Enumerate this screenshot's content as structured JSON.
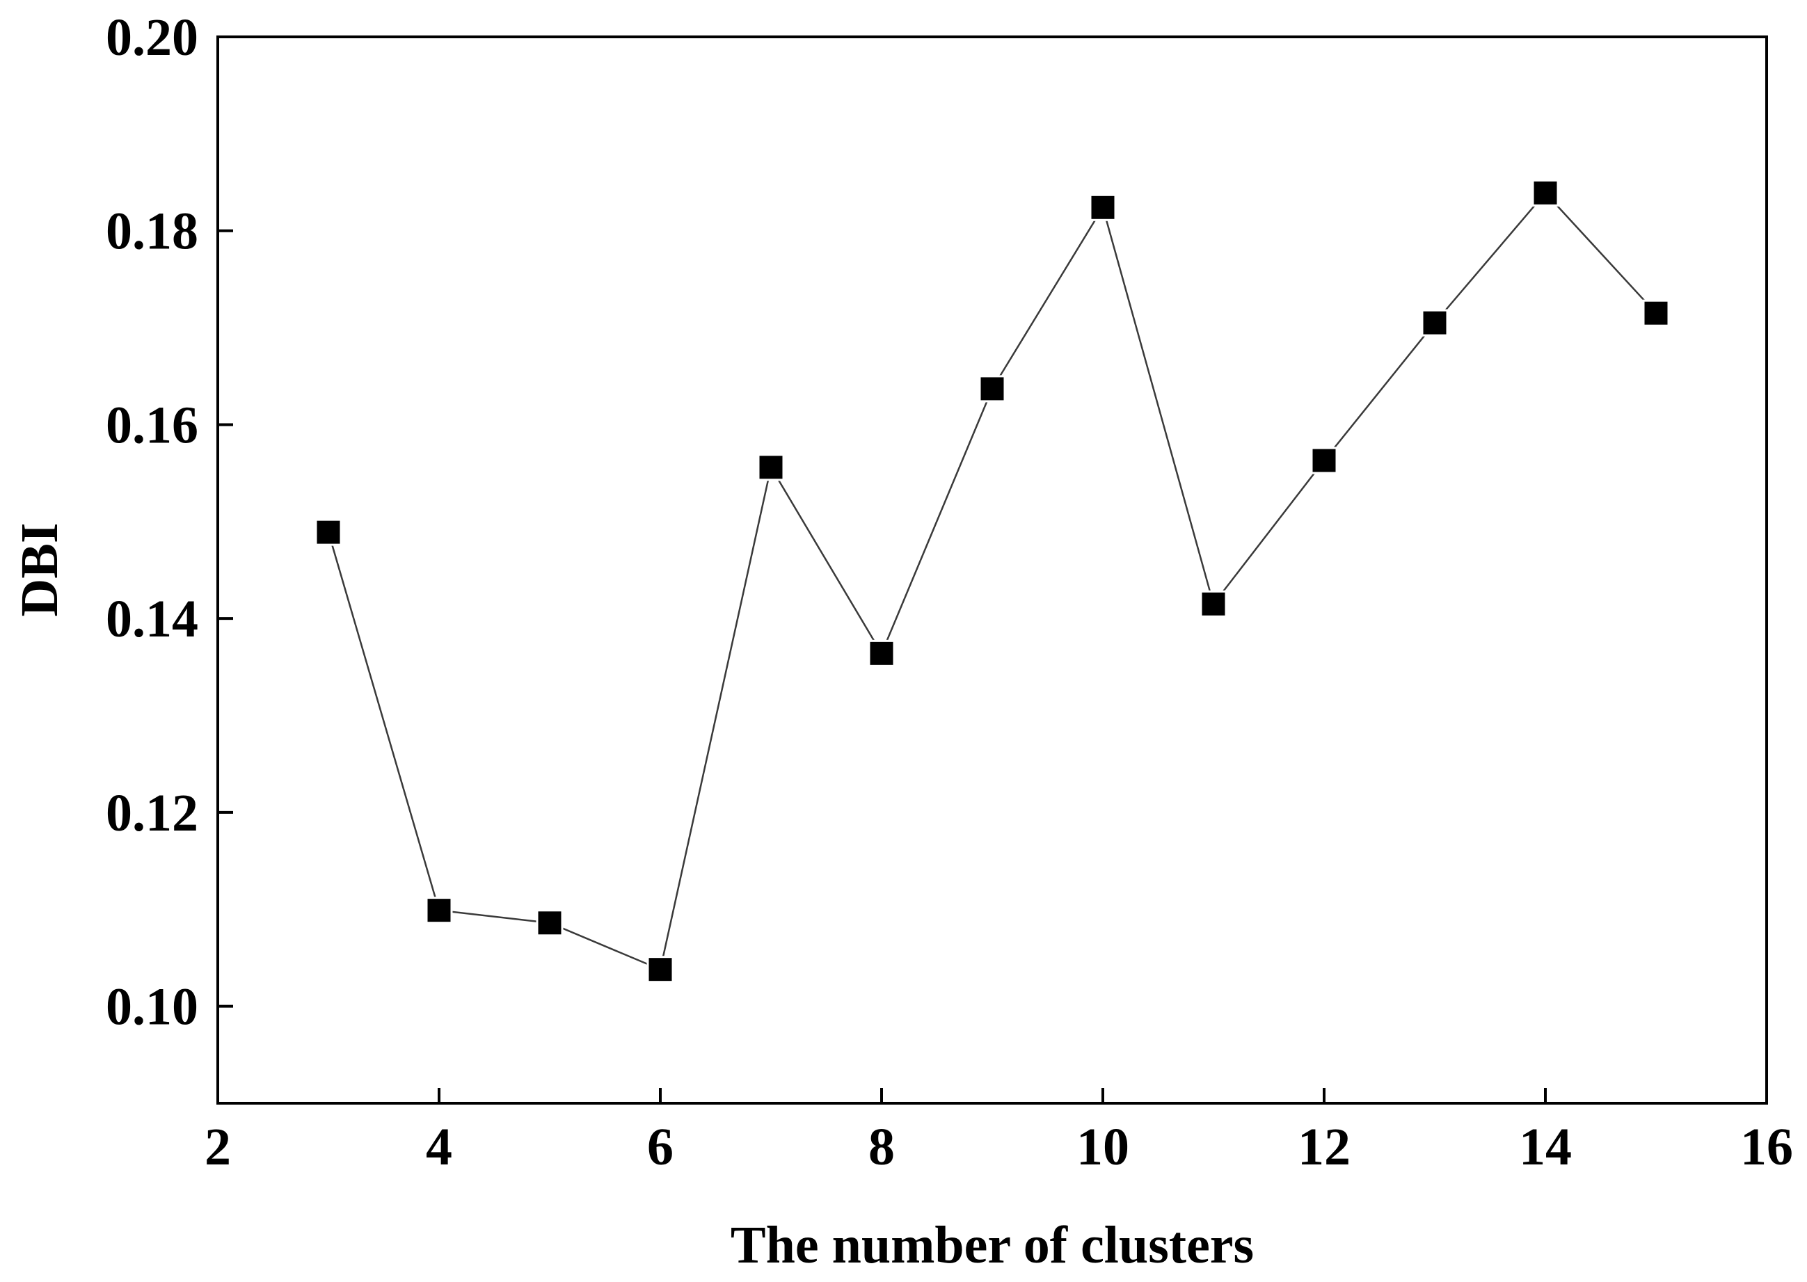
{
  "chart_data": {
    "type": "line",
    "title": "",
    "xlabel": "The number of clusters",
    "ylabel": "DBI",
    "xlim": [
      2,
      16
    ],
    "ylim": [
      0.09,
      0.2
    ],
    "x_ticks": [
      2,
      4,
      6,
      8,
      10,
      12,
      14,
      16
    ],
    "x_tick_labels": [
      "2",
      "4",
      "6",
      "8",
      "10",
      "12",
      "14",
      "16"
    ],
    "y_ticks": [
      0.1,
      0.12,
      0.14,
      0.16,
      0.18,
      0.2
    ],
    "y_tick_labels": [
      "0.10",
      "0.12",
      "0.14",
      "0.16",
      "0.18",
      "0.20"
    ],
    "grid": false,
    "legend": "none",
    "series": [
      {
        "x": [
          3,
          4,
          5,
          6,
          7,
          8,
          9,
          10,
          11,
          12,
          13,
          14,
          15
        ],
        "y": [
          0.1489,
          0.1099,
          0.1086,
          0.1038,
          0.1556,
          0.1364,
          0.1637,
          0.1824,
          0.1415,
          0.1563,
          0.1705,
          0.1839,
          0.1715
        ],
        "marker": "square",
        "color": "#000000"
      }
    ]
  }
}
